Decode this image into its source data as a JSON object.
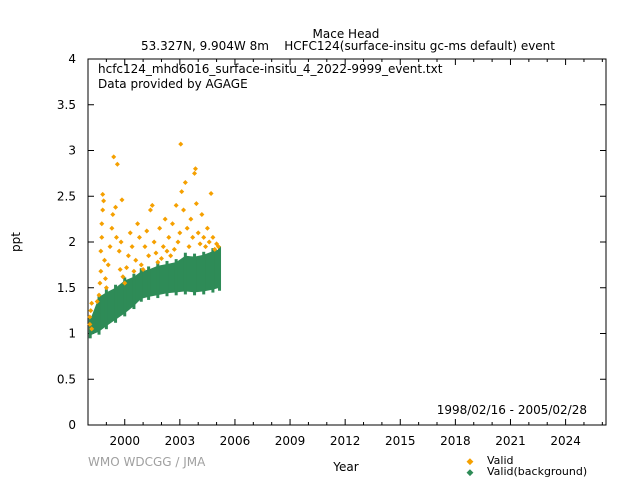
{
  "chart_data": {
    "type": "scatter",
    "title_line1": "Mace Head",
    "title_line2": "53.327N, 9.904W 8m    HCFC124(surface-insitu gc-ms default) event",
    "annotation_file": "hcfc124_mhd6016_surface-insitu_4_2022-9999_event.txt",
    "annotation_provider": "Data provided by AGAGE",
    "date_range": "1998/02/16 - 2005/02/28",
    "xlabel": "Year",
    "ylabel": "ppt",
    "xlim": [
      1998.0,
      2026.2
    ],
    "ylim": [
      0,
      4
    ],
    "x_ticks": [
      2000,
      2003,
      2006,
      2009,
      2012,
      2015,
      2018,
      2021,
      2024
    ],
    "y_ticks": [
      {
        "value": 0,
        "label": "0"
      },
      {
        "value": 0.5,
        "label": "0.5"
      },
      {
        "value": 1,
        "label": "1"
      },
      {
        "value": 1.5,
        "label": "1.5"
      },
      {
        "value": 2,
        "label": "2"
      },
      {
        "value": 2.5,
        "label": "2.5"
      },
      {
        "value": 3,
        "label": "3"
      },
      {
        "value": 3.5,
        "label": "3.5"
      },
      {
        "value": 4,
        "label": "4"
      }
    ],
    "series": [
      {
        "name": "Valid",
        "color": "#f5a000",
        "points": [
          [
            1998.1,
            1.1
          ],
          [
            1998.1,
            1.18
          ],
          [
            1998.15,
            1.25
          ],
          [
            1998.2,
            1.33
          ],
          [
            1998.2,
            1.05
          ],
          [
            1998.5,
            1.35
          ],
          [
            1998.6,
            1.42
          ],
          [
            1998.65,
            1.55
          ],
          [
            1998.7,
            1.68
          ],
          [
            1998.7,
            1.9
          ],
          [
            1998.75,
            2.05
          ],
          [
            1998.75,
            2.2
          ],
          [
            1998.8,
            2.35
          ],
          [
            1998.8,
            2.52
          ],
          [
            1998.85,
            2.45
          ],
          [
            1998.9,
            1.8
          ],
          [
            1998.95,
            1.6
          ],
          [
            1999.0,
            1.5
          ],
          [
            1999.1,
            1.75
          ],
          [
            1999.2,
            1.95
          ],
          [
            1999.3,
            2.15
          ],
          [
            1999.35,
            2.3
          ],
          [
            1999.4,
            2.93
          ],
          [
            1999.5,
            2.38
          ],
          [
            1999.55,
            2.05
          ],
          [
            1999.6,
            2.85
          ],
          [
            1999.7,
            1.9
          ],
          [
            1999.75,
            1.7
          ],
          [
            1999.8,
            2.0
          ],
          [
            1999.85,
            2.46
          ],
          [
            1999.9,
            1.62
          ],
          [
            2000.0,
            1.55
          ],
          [
            2000.1,
            1.72
          ],
          [
            2000.2,
            1.85
          ],
          [
            2000.3,
            2.1
          ],
          [
            2000.4,
            1.95
          ],
          [
            2000.5,
            1.68
          ],
          [
            2000.6,
            1.8
          ],
          [
            2000.7,
            2.2
          ],
          [
            2000.8,
            2.05
          ],
          [
            2000.9,
            1.75
          ],
          [
            2001.0,
            1.7
          ],
          [
            2001.1,
            1.95
          ],
          [
            2001.2,
            2.12
          ],
          [
            2001.3,
            1.85
          ],
          [
            2001.4,
            2.35
          ],
          [
            2001.5,
            2.4
          ],
          [
            2001.6,
            2.0
          ],
          [
            2001.7,
            1.88
          ],
          [
            2001.8,
            1.78
          ],
          [
            2001.9,
            2.15
          ],
          [
            2002.0,
            1.82
          ],
          [
            2002.1,
            1.95
          ],
          [
            2002.2,
            2.25
          ],
          [
            2002.3,
            1.9
          ],
          [
            2002.4,
            2.05
          ],
          [
            2002.5,
            1.85
          ],
          [
            2002.6,
            2.2
          ],
          [
            2002.7,
            1.92
          ],
          [
            2002.8,
            2.4
          ],
          [
            2002.9,
            2.0
          ],
          [
            2003.0,
            2.1
          ],
          [
            2003.05,
            3.07
          ],
          [
            2003.1,
            2.55
          ],
          [
            2003.2,
            2.35
          ],
          [
            2003.3,
            2.65
          ],
          [
            2003.4,
            2.15
          ],
          [
            2003.5,
            1.95
          ],
          [
            2003.6,
            2.25
          ],
          [
            2003.7,
            2.05
          ],
          [
            2003.8,
            2.75
          ],
          [
            2003.85,
            2.8
          ],
          [
            2003.9,
            2.42
          ],
          [
            2004.0,
            2.1
          ],
          [
            2004.1,
            1.98
          ],
          [
            2004.2,
            2.3
          ],
          [
            2004.3,
            2.05
          ],
          [
            2004.4,
            1.95
          ],
          [
            2004.5,
            2.15
          ],
          [
            2004.6,
            2.0
          ],
          [
            2004.7,
            2.53
          ],
          [
            2004.8,
            2.05
          ],
          [
            2004.9,
            1.92
          ],
          [
            2005.0,
            1.98
          ],
          [
            2005.1,
            1.95
          ]
        ]
      },
      {
        "name": "Valid(background)",
        "color": "#2e8b57",
        "band": [
          [
            1998.12,
            0.98,
            1.15
          ],
          [
            1998.6,
            1.02,
            1.4
          ],
          [
            1999.0,
            1.08,
            1.45
          ],
          [
            1999.5,
            1.15,
            1.5
          ],
          [
            2000.0,
            1.22,
            1.58
          ],
          [
            2000.5,
            1.3,
            1.62
          ],
          [
            2000.9,
            1.38,
            1.68
          ],
          [
            2001.3,
            1.4,
            1.7
          ],
          [
            2001.8,
            1.42,
            1.74
          ],
          [
            2002.3,
            1.44,
            1.76
          ],
          [
            2002.8,
            1.45,
            1.78
          ],
          [
            2003.3,
            1.46,
            1.85
          ],
          [
            2003.8,
            1.45,
            1.84
          ],
          [
            2004.3,
            1.46,
            1.86
          ],
          [
            2004.8,
            1.48,
            1.9
          ],
          [
            2005.16,
            1.5,
            1.92
          ]
        ]
      }
    ],
    "legend": {
      "position": "bottom-right",
      "entries": [
        "Valid",
        "Valid(background)"
      ]
    }
  },
  "credit": "WMO WDCGG / JMA"
}
